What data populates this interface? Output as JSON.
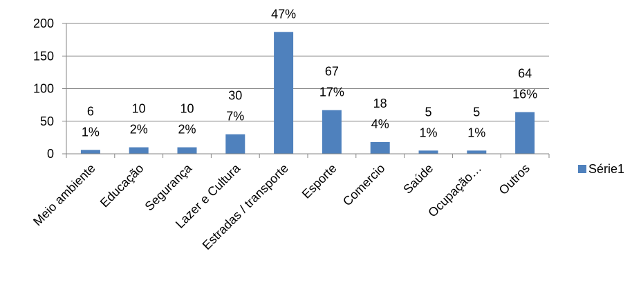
{
  "chart_data": {
    "type": "bar",
    "categories": [
      "Meio ambiente",
      "Educação",
      "Segurança",
      "Lazer e Cultura",
      "Estradas / transporte",
      "Esporte",
      "Comercio",
      "Saúde",
      "Ocupação…",
      "Outros"
    ],
    "series": [
      {
        "name": "Série1",
        "values": [
          6,
          10,
          10,
          30,
          187,
          67,
          18,
          5,
          5,
          64
        ],
        "color": "#4f81bd"
      }
    ],
    "data_labels": [
      {
        "value": "6",
        "percent": "1%"
      },
      {
        "value": "10",
        "percent": "2%"
      },
      {
        "value": "10",
        "percent": "2%"
      },
      {
        "value": "30",
        "percent": "7%"
      },
      {
        "value": "187",
        "percent": "47%"
      },
      {
        "value": "67",
        "percent": "17%"
      },
      {
        "value": "18",
        "percent": "4%"
      },
      {
        "value": "5",
        "percent": "1%"
      },
      {
        "value": "5",
        "percent": "1%"
      },
      {
        "value": "64",
        "percent": "16%"
      }
    ],
    "yticks": [
      "0",
      "50",
      "100",
      "150",
      "200"
    ],
    "ylim": [
      0,
      200
    ],
    "grid": true,
    "gridline_color": "#868686",
    "legend_position": "right",
    "title": "",
    "xlabel": "",
    "ylabel": ""
  }
}
